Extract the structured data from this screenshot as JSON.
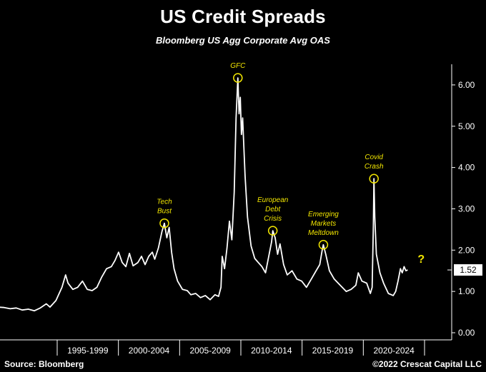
{
  "header": {
    "title": "US Credit Spreads",
    "subtitle": "Bloomberg US Agg Corporate Avg OAS"
  },
  "footer": {
    "source": "Source: Bloomberg",
    "copyright": "©2022 Crescat Capital LLC"
  },
  "colors": {
    "background": "#000000",
    "line": "#ffffff",
    "annotation": "#f2e600"
  },
  "chart_data": {
    "type": "line",
    "title": "US Credit Spreads",
    "subtitle": "Bloomberg US Agg Corporate Avg OAS",
    "xlabel": "",
    "ylabel": "",
    "x_range": [
      1989.0,
      2024.5
    ],
    "ylim": [
      0,
      6.5
    ],
    "y_axis_position": "right",
    "y_ticks": [
      "0.00",
      "1.00",
      "2.00",
      "3.00",
      "4.00",
      "5.00",
      "6.00"
    ],
    "x_period_labels": [
      "1995-1999",
      "2000-2004",
      "2005-2009",
      "2010-2014",
      "2015-2019",
      "2020-2024"
    ],
    "last_value_label": "1.52",
    "future_marker": "?",
    "grid": false,
    "annotations": [
      {
        "label_lines": [
          "Tech",
          "Bust"
        ],
        "x": 2002.8,
        "y": 2.65
      },
      {
        "label_lines": [
          "GFC"
        ],
        "x": 2008.9,
        "y": 6.17
      },
      {
        "label_lines": [
          "European",
          "Debt",
          "Crisis"
        ],
        "x": 2011.8,
        "y": 2.47
      },
      {
        "label_lines": [
          "Emerging",
          "Markets",
          "Meltdown"
        ],
        "x": 2016.0,
        "y": 2.13
      },
      {
        "label_lines": [
          "Covid",
          "Crash"
        ],
        "x": 2020.2,
        "y": 3.73
      }
    ],
    "series": [
      {
        "values": [
          [
            1989.0,
            0.62
          ],
          [
            1989.5,
            0.61
          ],
          [
            1990.0,
            0.58
          ],
          [
            1990.5,
            0.6
          ],
          [
            1991.0,
            0.55
          ],
          [
            1991.5,
            0.57
          ],
          [
            1992.0,
            0.53
          ],
          [
            1992.5,
            0.6
          ],
          [
            1993.0,
            0.7
          ],
          [
            1993.3,
            0.62
          ],
          [
            1993.8,
            0.78
          ],
          [
            1994.3,
            1.1
          ],
          [
            1994.6,
            1.4
          ],
          [
            1994.8,
            1.2
          ],
          [
            1995.2,
            1.05
          ],
          [
            1995.6,
            1.1
          ],
          [
            1996.0,
            1.25
          ],
          [
            1996.4,
            1.05
          ],
          [
            1996.8,
            1.02
          ],
          [
            1997.2,
            1.1
          ],
          [
            1997.6,
            1.35
          ],
          [
            1998.0,
            1.55
          ],
          [
            1998.4,
            1.6
          ],
          [
            1998.7,
            1.75
          ],
          [
            1999.0,
            1.95
          ],
          [
            1999.3,
            1.7
          ],
          [
            1999.6,
            1.6
          ],
          [
            1999.9,
            1.92
          ],
          [
            2000.2,
            1.62
          ],
          [
            2000.6,
            1.7
          ],
          [
            2000.9,
            1.85
          ],
          [
            2001.2,
            1.65
          ],
          [
            2001.5,
            1.85
          ],
          [
            2001.8,
            1.95
          ],
          [
            2002.0,
            1.78
          ],
          [
            2002.3,
            2.05
          ],
          [
            2002.6,
            2.45
          ],
          [
            2002.8,
            2.65
          ],
          [
            2003.0,
            2.3
          ],
          [
            2003.2,
            2.55
          ],
          [
            2003.4,
            1.95
          ],
          [
            2003.6,
            1.55
          ],
          [
            2003.9,
            1.25
          ],
          [
            2004.3,
            1.05
          ],
          [
            2004.7,
            1.02
          ],
          [
            2005.0,
            0.92
          ],
          [
            2005.4,
            0.95
          ],
          [
            2005.8,
            0.85
          ],
          [
            2006.2,
            0.9
          ],
          [
            2006.6,
            0.8
          ],
          [
            2007.0,
            0.92
          ],
          [
            2007.3,
            0.88
          ],
          [
            2007.5,
            1.1
          ],
          [
            2007.6,
            1.85
          ],
          [
            2007.8,
            1.55
          ],
          [
            2008.0,
            2.05
          ],
          [
            2008.2,
            2.7
          ],
          [
            2008.4,
            2.25
          ],
          [
            2008.6,
            3.4
          ],
          [
            2008.75,
            5.2
          ],
          [
            2008.9,
            6.17
          ],
          [
            2009.0,
            5.3
          ],
          [
            2009.1,
            5.7
          ],
          [
            2009.2,
            4.8
          ],
          [
            2009.3,
            5.2
          ],
          [
            2009.5,
            3.8
          ],
          [
            2009.7,
            2.8
          ],
          [
            2010.0,
            2.1
          ],
          [
            2010.3,
            1.8
          ],
          [
            2010.6,
            1.7
          ],
          [
            2010.9,
            1.6
          ],
          [
            2011.2,
            1.45
          ],
          [
            2011.5,
            1.9
          ],
          [
            2011.7,
            2.2
          ],
          [
            2011.8,
            2.47
          ],
          [
            2012.0,
            2.3
          ],
          [
            2012.2,
            1.9
          ],
          [
            2012.4,
            2.15
          ],
          [
            2012.7,
            1.65
          ],
          [
            2013.0,
            1.4
          ],
          [
            2013.4,
            1.5
          ],
          [
            2013.8,
            1.3
          ],
          [
            2014.2,
            1.25
          ],
          [
            2014.6,
            1.1
          ],
          [
            2015.0,
            1.3
          ],
          [
            2015.4,
            1.5
          ],
          [
            2015.7,
            1.65
          ],
          [
            2015.9,
            2.0
          ],
          [
            2016.0,
            2.13
          ],
          [
            2016.2,
            1.9
          ],
          [
            2016.5,
            1.5
          ],
          [
            2016.9,
            1.3
          ],
          [
            2017.4,
            1.15
          ],
          [
            2017.9,
            1.0
          ],
          [
            2018.3,
            1.05
          ],
          [
            2018.7,
            1.15
          ],
          [
            2018.9,
            1.45
          ],
          [
            2019.2,
            1.25
          ],
          [
            2019.6,
            1.2
          ],
          [
            2019.9,
            0.95
          ],
          [
            2020.05,
            1.1
          ],
          [
            2020.15,
            2.6
          ],
          [
            2020.2,
            3.73
          ],
          [
            2020.27,
            2.8
          ],
          [
            2020.4,
            1.9
          ],
          [
            2020.7,
            1.45
          ],
          [
            2021.0,
            1.2
          ],
          [
            2021.4,
            0.95
          ],
          [
            2021.8,
            0.9
          ],
          [
            2022.0,
            1.0
          ],
          [
            2022.2,
            1.25
          ],
          [
            2022.4,
            1.55
          ],
          [
            2022.55,
            1.45
          ],
          [
            2022.7,
            1.6
          ],
          [
            2022.85,
            1.5
          ],
          [
            2023.0,
            1.52
          ]
        ]
      }
    ]
  }
}
